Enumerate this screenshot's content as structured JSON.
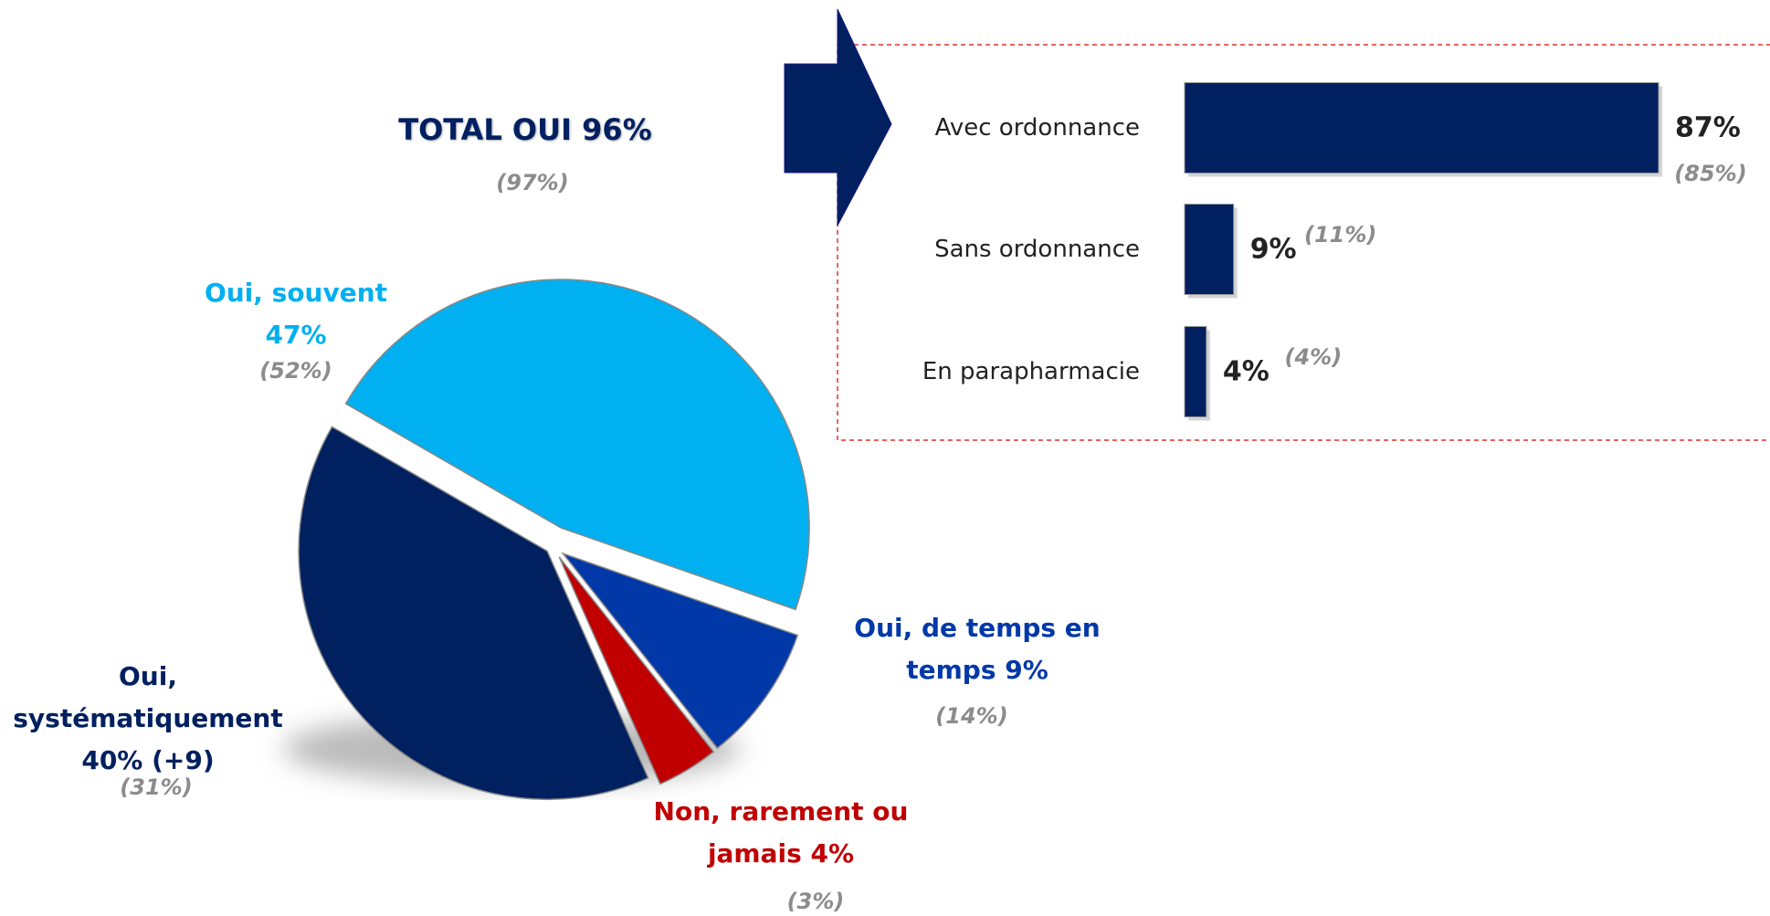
{
  "chart_data": [
    {
      "type": "pie",
      "title": "TOTAL OUI 96%",
      "subtitle": "(97%)",
      "categories": [
        "Oui, souvent",
        "Oui, de temps en temps",
        "Non, rarement ou jamais",
        "Oui, systématiquement"
      ],
      "values": [
        47,
        9,
        4,
        40
      ],
      "value_labels": [
        "47%",
        "9%",
        "4%",
        "40% (+9)"
      ],
      "comparison_labels": [
        "(52%)",
        "(14%)",
        "(3%)",
        "(31%)"
      ],
      "colors": [
        "#00b0f0",
        "#0038a8",
        "#c00000",
        "#002060"
      ]
    },
    {
      "type": "bar",
      "orientation": "horizontal",
      "categories": [
        "Avec ordonnance",
        "Sans ordonnance",
        "En parapharmacie"
      ],
      "values": [
        87,
        9,
        4
      ],
      "value_labels": [
        "87%",
        "9%",
        "4%"
      ],
      "comparison_labels": [
        "(85%)",
        "(11%)",
        "(4%)"
      ],
      "color": "#002060"
    }
  ]
}
